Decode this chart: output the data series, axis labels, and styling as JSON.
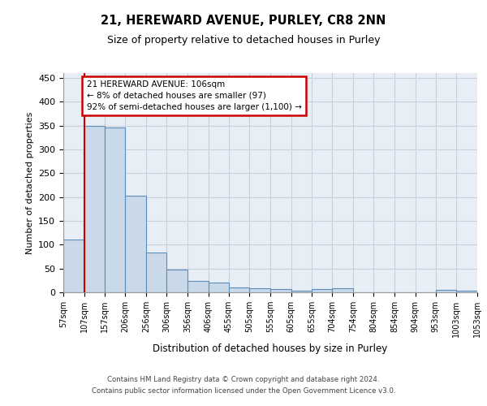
{
  "title1": "21, HEREWARD AVENUE, PURLEY, CR8 2NN",
  "title2": "Size of property relative to detached houses in Purley",
  "xlabel": "Distribution of detached houses by size in Purley",
  "ylabel": "Number of detached properties",
  "bin_edges": [
    57,
    107,
    157,
    206,
    256,
    306,
    356,
    406,
    455,
    505,
    555,
    605,
    655,
    704,
    754,
    804,
    854,
    904,
    953,
    1003,
    1053
  ],
  "bar_heights": [
    110,
    350,
    345,
    203,
    83,
    47,
    24,
    21,
    10,
    8,
    7,
    4,
    7,
    8,
    0,
    0,
    0,
    0,
    5,
    4
  ],
  "bar_color": "#c9d9ea",
  "bar_edge_color": "#5b8db8",
  "bar_edge_width": 0.8,
  "vline_x": 107,
  "vline_color": "#cc0000",
  "annotation_line1": "21 HEREWARD AVENUE: 106sqm",
  "annotation_line2": "← 8% of detached houses are smaller (97)",
  "annotation_line3": "92% of semi-detached houses are larger (1,100) →",
  "annotation_box_color": "#cc0000",
  "ylim": [
    0,
    460
  ],
  "yticks": [
    0,
    50,
    100,
    150,
    200,
    250,
    300,
    350,
    400,
    450
  ],
  "grid_color": "#c8d0dc",
  "background_color": "#e8eef5",
  "footer1": "Contains HM Land Registry data © Crown copyright and database right 2024.",
  "footer2": "Contains public sector information licensed under the Open Government Licence v3.0.",
  "tick_labels": [
    "57sqm",
    "107sqm",
    "157sqm",
    "206sqm",
    "256sqm",
    "306sqm",
    "356sqm",
    "406sqm",
    "455sqm",
    "505sqm",
    "555sqm",
    "605sqm",
    "655sqm",
    "704sqm",
    "754sqm",
    "804sqm",
    "854sqm",
    "904sqm",
    "953sqm",
    "1003sqm",
    "1053sqm"
  ]
}
